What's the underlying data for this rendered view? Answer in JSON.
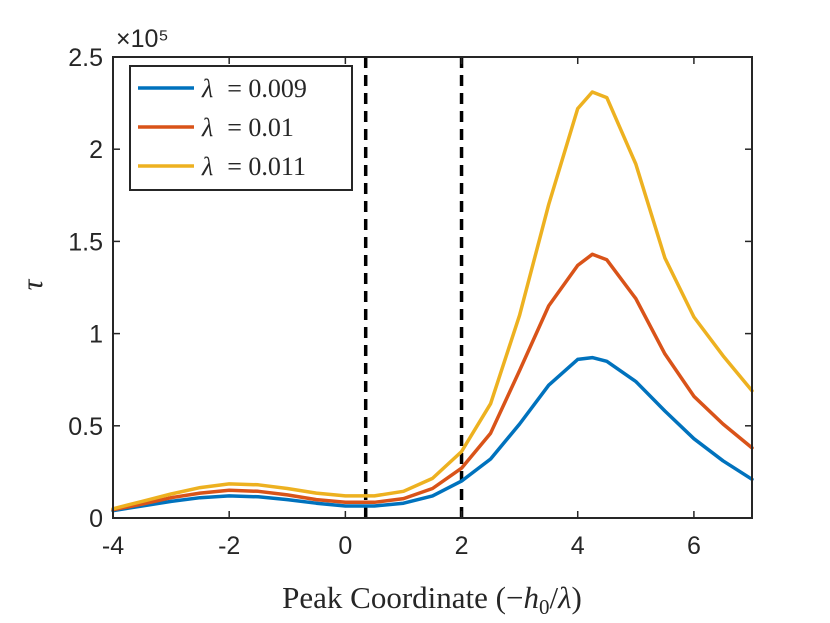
{
  "chart_data": {
    "type": "line",
    "title": "",
    "xlabel": "Peak Coordinate (−h₀/λ)",
    "ylabel": "τ",
    "xlim": [
      -4,
      7
    ],
    "ylim": [
      0,
      250000
    ],
    "xticks": [
      -4,
      -2,
      0,
      2,
      4,
      6
    ],
    "xtick_labels": [
      "-4",
      "-2",
      "0",
      "2",
      "4",
      "6"
    ],
    "yticks": [
      0,
      50000,
      100000,
      150000,
      200000,
      250000
    ],
    "ytick_labels": [
      "0",
      "0.5",
      "1",
      "1.5",
      "2",
      "2.5"
    ],
    "y_exponent": "×10⁵",
    "grid": false,
    "legend_position": "top-left",
    "vlines": [
      0.35,
      2.0
    ],
    "series": [
      {
        "name": "λ = 0.009",
        "color": "#0072BD",
        "x": [
          -4,
          -3.5,
          -3,
          -2.5,
          -2,
          -1.5,
          -1,
          -0.5,
          0,
          0.5,
          1,
          1.5,
          2,
          2.5,
          3,
          3.5,
          4,
          4.25,
          4.5,
          5,
          5.5,
          6,
          6.5,
          7
        ],
        "y": [
          4000,
          6500,
          9000,
          11000,
          12000,
          11500,
          10000,
          8000,
          6500,
          6500,
          8000,
          12000,
          20000,
          32000,
          51000,
          72000,
          86000,
          87000,
          85000,
          74000,
          58000,
          43000,
          31000,
          21000
        ]
      },
      {
        "name": "λ = 0.01",
        "color": "#D95319",
        "x": [
          -4,
          -3.5,
          -3,
          -2.5,
          -2,
          -1.5,
          -1,
          -0.5,
          0,
          0.5,
          1,
          1.5,
          2,
          2.5,
          3,
          3.5,
          4,
          4.25,
          4.5,
          5,
          5.5,
          6,
          6.5,
          7
        ],
        "y": [
          4500,
          7500,
          11000,
          13500,
          15000,
          14500,
          12500,
          10000,
          8500,
          8500,
          10500,
          16000,
          27000,
          46000,
          80000,
          115000,
          137000,
          143000,
          140000,
          119000,
          89000,
          66000,
          51000,
          38000
        ]
      },
      {
        "name": "λ = 0.011",
        "color": "#EDB120",
        "x": [
          -4,
          -3.5,
          -3,
          -2.5,
          -2,
          -1.5,
          -1,
          -0.5,
          0,
          0.5,
          1,
          1.5,
          2,
          2.5,
          3,
          3.5,
          4,
          4.25,
          4.5,
          5,
          5.5,
          6,
          6.5,
          7
        ],
        "y": [
          5000,
          9000,
          13000,
          16500,
          18500,
          18000,
          16000,
          13500,
          12000,
          12000,
          14500,
          21500,
          36000,
          62000,
          110000,
          170000,
          222000,
          231000,
          228000,
          192000,
          141000,
          109000,
          88000,
          69000
        ]
      }
    ],
    "legend_entries": [
      {
        "symbol": "λ",
        "rest": "= 0.009"
      },
      {
        "symbol": "λ",
        "rest": "= 0.01"
      },
      {
        "symbol": "λ",
        "rest": "= 0.011"
      }
    ],
    "xlabel_parts": {
      "main": "Peak Coordinate (",
      "minus": "−",
      "h": "h",
      "sub": "0",
      "slash": "/",
      "lambda": "λ",
      "close": ")"
    }
  }
}
